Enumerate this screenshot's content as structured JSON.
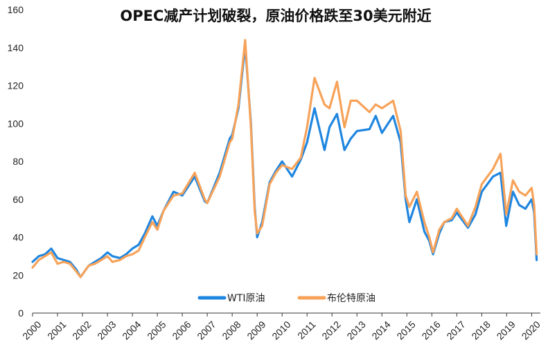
{
  "chart_data": {
    "type": "line",
    "title": "OPEC减产计划破裂，原油价格跌至30美元附近",
    "xlabel": "",
    "ylabel": "",
    "ylim": [
      0,
      160
    ],
    "yticks": [
      0,
      20,
      40,
      60,
      80,
      100,
      120,
      140,
      160
    ],
    "xlim": [
      2000.0,
      2020.35
    ],
    "xticks": [
      "2000",
      "2001",
      "2002",
      "2003",
      "2004",
      "2005",
      "2006",
      "2007",
      "2008",
      "2009",
      "2010",
      "2011",
      "2012",
      "2013",
      "2014",
      "2015",
      "2016",
      "2017",
      "2018",
      "2019",
      "2020"
    ],
    "legend_position": "bottom-center",
    "grid": false,
    "colors": {
      "wti": "#1f86e0",
      "brent": "#f7a259"
    },
    "series": [
      {
        "name": "WTI原油",
        "color": "#1f86e0",
        "x": [
          2000.0,
          2000.25,
          2000.5,
          2000.75,
          2001.0,
          2001.25,
          2001.5,
          2001.75,
          2001.92,
          2002.25,
          2002.5,
          2002.75,
          2003.0,
          2003.2,
          2003.5,
          2003.75,
          2004.0,
          2004.25,
          2004.5,
          2004.8,
          2005.0,
          2005.25,
          2005.65,
          2006.0,
          2006.5,
          2006.9,
          2007.0,
          2007.5,
          2007.9,
          2008.0,
          2008.25,
          2008.52,
          2008.75,
          2008.9,
          2009.0,
          2009.2,
          2009.5,
          2009.75,
          2010.0,
          2010.4,
          2010.75,
          2011.0,
          2011.3,
          2011.7,
          2011.9,
          2012.2,
          2012.5,
          2012.75,
          2013.0,
          2013.5,
          2013.75,
          2014.0,
          2014.45,
          2014.75,
          2014.95,
          2015.1,
          2015.4,
          2015.7,
          2015.9,
          2016.05,
          2016.3,
          2016.5,
          2016.8,
          2017.0,
          2017.45,
          2017.75,
          2018.0,
          2018.45,
          2018.75,
          2018.98,
          2019.25,
          2019.5,
          2019.75,
          2020.0,
          2020.1,
          2020.2
        ],
        "values": [
          27,
          30,
          31,
          34,
          29,
          28,
          27,
          23,
          19,
          25,
          27,
          29,
          32,
          30,
          29,
          31,
          34,
          36,
          42,
          51,
          46,
          54,
          64,
          62,
          72,
          59,
          58,
          74,
          92,
          94,
          108,
          141,
          100,
          56,
          40,
          48,
          69,
          75,
          80,
          72,
          81,
          90,
          108,
          86,
          98,
          105,
          86,
          92,
          96,
          97,
          104,
          95,
          104,
          90,
          60,
          48,
          60,
          43,
          38,
          31,
          42,
          48,
          49,
          53,
          45,
          52,
          64,
          72,
          74,
          46,
          64,
          57,
          55,
          60,
          53,
          28
        ]
      },
      {
        "name": "布伦特原油",
        "color": "#f7a259",
        "x": [
          2000.0,
          2000.25,
          2000.5,
          2000.75,
          2001.0,
          2001.25,
          2001.5,
          2001.75,
          2001.92,
          2002.25,
          2002.5,
          2002.75,
          2003.0,
          2003.2,
          2003.5,
          2003.75,
          2004.0,
          2004.25,
          2004.5,
          2004.8,
          2005.0,
          2005.25,
          2005.65,
          2006.0,
          2006.5,
          2006.9,
          2007.0,
          2007.5,
          2007.9,
          2008.0,
          2008.25,
          2008.52,
          2008.75,
          2008.9,
          2009.0,
          2009.2,
          2009.5,
          2009.75,
          2010.0,
          2010.4,
          2010.75,
          2011.0,
          2011.3,
          2011.7,
          2011.9,
          2012.2,
          2012.5,
          2012.75,
          2013.0,
          2013.5,
          2013.75,
          2014.0,
          2014.45,
          2014.75,
          2014.95,
          2015.1,
          2015.4,
          2015.7,
          2015.9,
          2016.05,
          2016.3,
          2016.5,
          2016.8,
          2017.0,
          2017.45,
          2017.75,
          2018.0,
          2018.45,
          2018.75,
          2018.98,
          2019.25,
          2019.5,
          2019.75,
          2020.0,
          2020.1,
          2020.2
        ],
        "values": [
          24,
          28,
          30,
          32,
          26,
          27,
          26,
          22,
          19,
          25,
          26,
          28,
          30,
          27,
          28,
          30,
          31,
          33,
          40,
          48,
          44,
          54,
          62,
          63,
          74,
          60,
          58,
          72,
          90,
          92,
          110,
          144,
          98,
          54,
          42,
          46,
          68,
          74,
          78,
          76,
          82,
          98,
          124,
          110,
          108,
          122,
          98,
          112,
          112,
          106,
          110,
          108,
          112,
          96,
          62,
          56,
          64,
          48,
          40,
          32,
          44,
          48,
          50,
          55,
          46,
          56,
          68,
          76,
          84,
          52,
          70,
          64,
          62,
          66,
          57,
          31
        ]
      }
    ]
  }
}
